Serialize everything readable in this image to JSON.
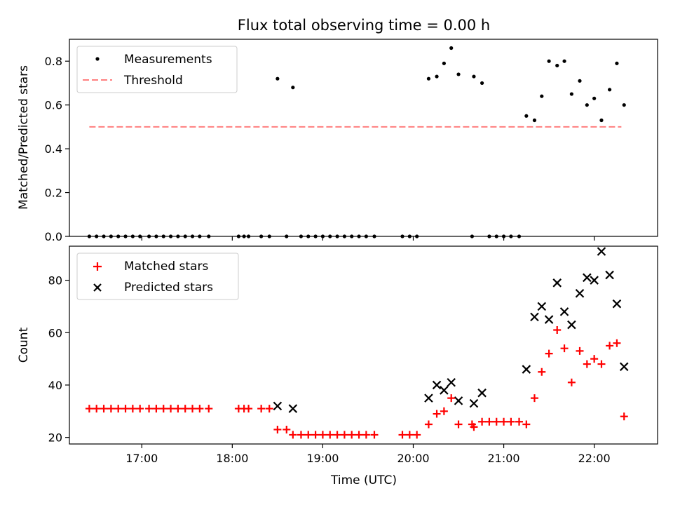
{
  "chart_data": {
    "type": "scatter",
    "title": "Flux total observing time = 0.00 h",
    "xlabel": "Time (UTC)",
    "xlim": [
      16.2,
      22.7
    ],
    "x_ticks": [
      17,
      18,
      19,
      20,
      21,
      22
    ],
    "x_tick_labels": [
      "17:00",
      "18:00",
      "19:00",
      "20:00",
      "21:00",
      "22:00"
    ],
    "panels": [
      {
        "name": "ratio",
        "ylabel": "Matched/Predicted stars",
        "ylim": [
          0,
          0.9
        ],
        "y_ticks": [
          0.0,
          0.2,
          0.4,
          0.6,
          0.8
        ],
        "y_tick_labels": [
          "0.0",
          "0.2",
          "0.4",
          "0.6",
          "0.8"
        ],
        "legend_position": "upper left",
        "threshold": {
          "name": "Threshold",
          "value": 0.5,
          "x_range": [
            16.42,
            22.3
          ],
          "color": "#ff7f7f",
          "style": "dashed"
        },
        "series": [
          {
            "name": "Measurements",
            "marker": "dot",
            "color": "#000000",
            "points": [
              [
                16.42,
                0
              ],
              [
                16.5,
                0
              ],
              [
                16.58,
                0
              ],
              [
                16.66,
                0
              ],
              [
                16.74,
                0
              ],
              [
                16.82,
                0
              ],
              [
                16.9,
                0
              ],
              [
                16.98,
                0
              ],
              [
                17.08,
                0
              ],
              [
                17.16,
                0
              ],
              [
                17.24,
                0
              ],
              [
                17.32,
                0
              ],
              [
                17.4,
                0
              ],
              [
                17.48,
                0
              ],
              [
                17.56,
                0
              ],
              [
                17.64,
                0
              ],
              [
                17.74,
                0
              ],
              [
                18.07,
                0
              ],
              [
                18.13,
                0
              ],
              [
                18.18,
                0
              ],
              [
                18.32,
                0
              ],
              [
                18.41,
                0
              ],
              [
                18.5,
                0.72
              ],
              [
                18.6,
                0
              ],
              [
                18.67,
                0.68
              ],
              [
                18.76,
                0
              ],
              [
                18.84,
                0
              ],
              [
                18.92,
                0
              ],
              [
                19.0,
                0
              ],
              [
                19.08,
                0
              ],
              [
                19.16,
                0
              ],
              [
                19.24,
                0
              ],
              [
                19.32,
                0
              ],
              [
                19.4,
                0
              ],
              [
                19.48,
                0
              ],
              [
                19.57,
                0
              ],
              [
                19.88,
                0
              ],
              [
                19.96,
                0
              ],
              [
                20.04,
                0
              ],
              [
                20.17,
                0.72
              ],
              [
                20.26,
                0.73
              ],
              [
                20.34,
                0.79
              ],
              [
                20.42,
                0.86
              ],
              [
                20.5,
                0.74
              ],
              [
                20.65,
                0
              ],
              [
                20.67,
                0.73
              ],
              [
                20.76,
                0.7
              ],
              [
                20.84,
                0
              ],
              [
                20.92,
                0
              ],
              [
                21.0,
                0
              ],
              [
                21.08,
                0
              ],
              [
                21.17,
                0
              ],
              [
                21.25,
                0.55
              ],
              [
                21.34,
                0.53
              ],
              [
                21.42,
                0.64
              ],
              [
                21.5,
                0.8
              ],
              [
                21.59,
                0.78
              ],
              [
                21.67,
                0.8
              ],
              [
                21.75,
                0.65
              ],
              [
                21.84,
                0.71
              ],
              [
                21.92,
                0.6
              ],
              [
                22.0,
                0.63
              ],
              [
                22.08,
                0.53
              ],
              [
                22.17,
                0.67
              ],
              [
                22.25,
                0.79
              ],
              [
                22.33,
                0.6
              ]
            ]
          }
        ]
      },
      {
        "name": "counts",
        "ylabel": "Count",
        "ylim": [
          17.5,
          93
        ],
        "y_ticks": [
          20,
          40,
          60,
          80
        ],
        "y_tick_labels": [
          "20",
          "40",
          "60",
          "80"
        ],
        "legend_position": "upper left",
        "series": [
          {
            "name": "Matched stars",
            "marker": "plus",
            "color": "#ff0000",
            "points": [
              [
                16.42,
                31
              ],
              [
                16.5,
                31
              ],
              [
                16.58,
                31
              ],
              [
                16.66,
                31
              ],
              [
                16.74,
                31
              ],
              [
                16.82,
                31
              ],
              [
                16.9,
                31
              ],
              [
                16.98,
                31
              ],
              [
                17.08,
                31
              ],
              [
                17.16,
                31
              ],
              [
                17.24,
                31
              ],
              [
                17.32,
                31
              ],
              [
                17.4,
                31
              ],
              [
                17.48,
                31
              ],
              [
                17.56,
                31
              ],
              [
                17.64,
                31
              ],
              [
                17.74,
                31
              ],
              [
                18.07,
                31
              ],
              [
                18.13,
                31
              ],
              [
                18.18,
                31
              ],
              [
                18.32,
                31
              ],
              [
                18.41,
                31
              ],
              [
                18.5,
                23
              ],
              [
                18.6,
                23
              ],
              [
                18.67,
                21
              ],
              [
                18.76,
                21
              ],
              [
                18.84,
                21
              ],
              [
                18.92,
                21
              ],
              [
                19.0,
                21
              ],
              [
                19.08,
                21
              ],
              [
                19.16,
                21
              ],
              [
                19.24,
                21
              ],
              [
                19.32,
                21
              ],
              [
                19.4,
                21
              ],
              [
                19.48,
                21
              ],
              [
                19.57,
                21
              ],
              [
                19.88,
                21
              ],
              [
                19.96,
                21
              ],
              [
                20.04,
                21
              ],
              [
                20.17,
                25
              ],
              [
                20.26,
                29
              ],
              [
                20.34,
                30
              ],
              [
                20.42,
                35
              ],
              [
                20.5,
                25
              ],
              [
                20.65,
                25
              ],
              [
                20.67,
                24
              ],
              [
                20.76,
                26
              ],
              [
                20.84,
                26
              ],
              [
                20.92,
                26
              ],
              [
                21.0,
                26
              ],
              [
                21.08,
                26
              ],
              [
                21.17,
                26
              ],
              [
                21.25,
                25
              ],
              [
                21.34,
                35
              ],
              [
                21.42,
                45
              ],
              [
                21.5,
                52
              ],
              [
                21.59,
                61
              ],
              [
                21.67,
                54
              ],
              [
                21.75,
                41
              ],
              [
                21.84,
                53
              ],
              [
                21.92,
                48
              ],
              [
                22.0,
                50
              ],
              [
                22.08,
                48
              ],
              [
                22.17,
                55
              ],
              [
                22.25,
                56
              ],
              [
                22.33,
                28
              ]
            ]
          },
          {
            "name": "Predicted stars",
            "marker": "x",
            "color": "#000000",
            "points": [
              [
                18.5,
                32
              ],
              [
                18.67,
                31
              ],
              [
                20.17,
                35
              ],
              [
                20.26,
                40
              ],
              [
                20.34,
                38
              ],
              [
                20.42,
                41
              ],
              [
                20.5,
                34
              ],
              [
                20.67,
                33
              ],
              [
                20.76,
                37
              ],
              [
                21.25,
                46
              ],
              [
                21.34,
                66
              ],
              [
                21.42,
                70
              ],
              [
                21.5,
                65
              ],
              [
                21.59,
                79
              ],
              [
                21.67,
                68
              ],
              [
                21.75,
                63
              ],
              [
                21.84,
                75
              ],
              [
                21.92,
                81
              ],
              [
                22.0,
                80
              ],
              [
                22.08,
                91
              ],
              [
                22.17,
                82
              ],
              [
                22.25,
                71
              ],
              [
                22.33,
                47
              ]
            ]
          }
        ]
      }
    ]
  }
}
